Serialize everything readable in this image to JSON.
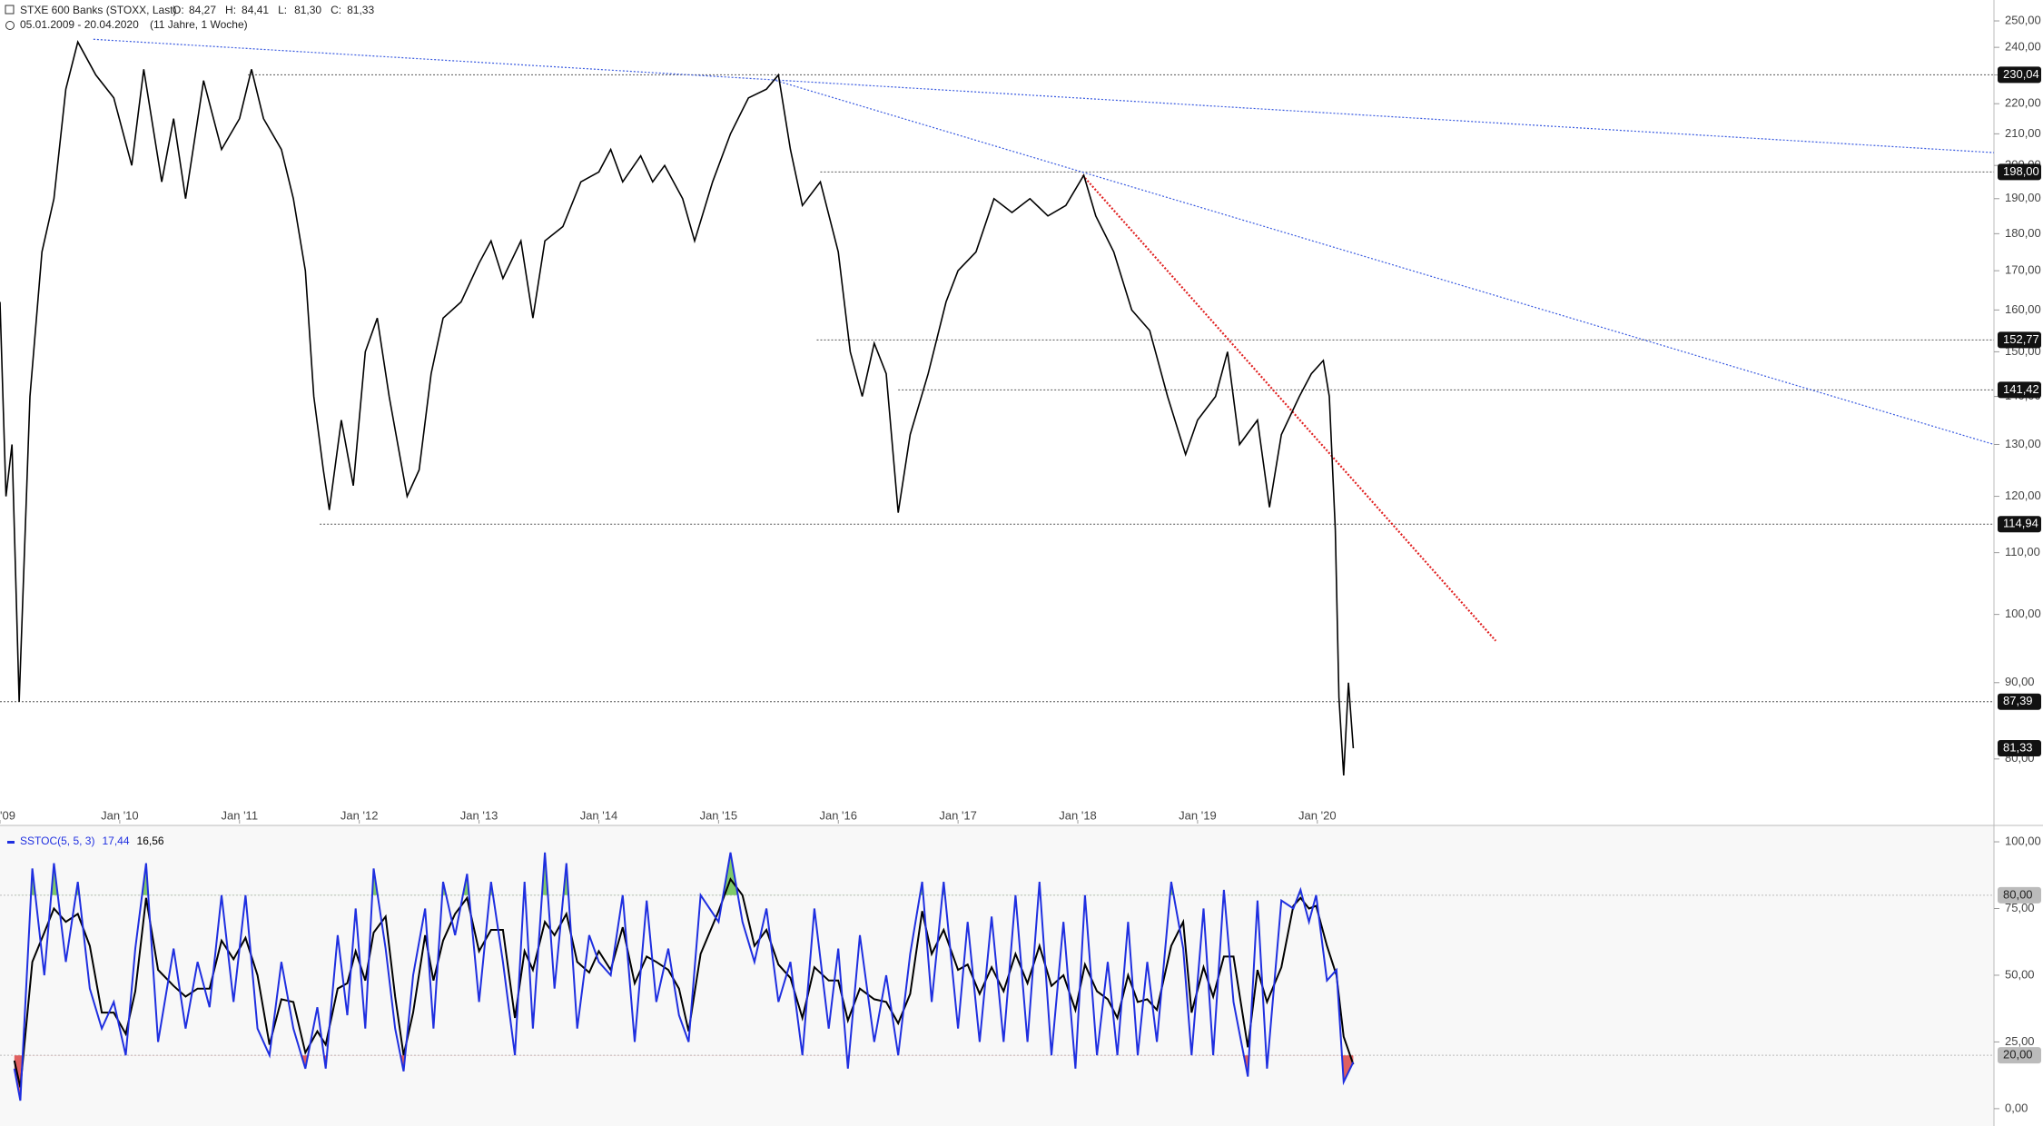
{
  "header": {
    "title": "STXE 600 Banks (STOXX, Last)",
    "ohlc": [
      {
        "label": "O:",
        "value": "84,27"
      },
      {
        "label": "H:",
        "value": "84,41"
      },
      {
        "label": "L:",
        "value": "81,30"
      },
      {
        "label": "C:",
        "value": "81,33"
      }
    ],
    "range": "05.01.2009 - 20.04.2020",
    "period": "(11 Jahre, 1 Woche)"
  },
  "chart_data": [
    {
      "type": "line",
      "log_scale": true,
      "color": "#000000",
      "x": [
        2009.0,
        2009.05,
        2009.1,
        2009.16,
        2009.25,
        2009.35,
        2009.45,
        2009.55,
        2009.65,
        2009.8,
        2009.95,
        2010.1,
        2010.2,
        2010.35,
        2010.45,
        2010.55,
        2010.7,
        2010.85,
        2011.0,
        2011.1,
        2011.2,
        2011.35,
        2011.45,
        2011.55,
        2011.62,
        2011.7,
        2011.75,
        2011.85,
        2011.95,
        2012.05,
        2012.15,
        2012.25,
        2012.4,
        2012.5,
        2012.6,
        2012.7,
        2012.85,
        2013.0,
        2013.1,
        2013.2,
        2013.35,
        2013.45,
        2013.55,
        2013.7,
        2013.85,
        2014.0,
        2014.1,
        2014.2,
        2014.35,
        2014.45,
        2014.55,
        2014.7,
        2014.8,
        2014.95,
        2015.1,
        2015.25,
        2015.4,
        2015.5,
        2015.6,
        2015.7,
        2015.85,
        2016.0,
        2016.1,
        2016.2,
        2016.3,
        2016.4,
        2016.5,
        2016.6,
        2016.75,
        2016.9,
        2017.0,
        2017.15,
        2017.3,
        2017.45,
        2017.6,
        2017.75,
        2017.9,
        2018.05,
        2018.15,
        2018.3,
        2018.45,
        2018.6,
        2018.75,
        2018.9,
        2019.0,
        2019.15,
        2019.25,
        2019.35,
        2019.5,
        2019.6,
        2019.7,
        2019.85,
        2019.95,
        2020.05,
        2020.1,
        2020.15,
        2020.18,
        2020.22,
        2020.26,
        2020.3
      ],
      "values": [
        162,
        120,
        130,
        87.4,
        140,
        175,
        190,
        225,
        242,
        230,
        222,
        200,
        232,
        195,
        215,
        190,
        228,
        205,
        215,
        232,
        215,
        205,
        190,
        170,
        140,
        125,
        117.5,
        135,
        122,
        150,
        158,
        140,
        120,
        125,
        145,
        158,
        162,
        172,
        178,
        168,
        178,
        158,
        178,
        182,
        195,
        198,
        205,
        195,
        203,
        195,
        200,
        190,
        178,
        195,
        210,
        222,
        225,
        230,
        205,
        188,
        195,
        175,
        150,
        140,
        152,
        145,
        117,
        132,
        145,
        162,
        170,
        175,
        190,
        186,
        190,
        185,
        188,
        197,
        185,
        175,
        160,
        155,
        140,
        128,
        135,
        140,
        150,
        130,
        135,
        118,
        132,
        140,
        145,
        148,
        140,
        114,
        88,
        78,
        90,
        81.33
      ],
      "xlim": [
        2009.0,
        2025.65
      ],
      "xticks": [
        {
          "value": 2009,
          "label": "'09"
        },
        {
          "value": 2010,
          "label": "Jan '10"
        },
        {
          "value": 2011,
          "label": "Jan '11"
        },
        {
          "value": 2012,
          "label": "Jan '12"
        },
        {
          "value": 2013,
          "label": "Jan '13"
        },
        {
          "value": 2014,
          "label": "Jan '14"
        },
        {
          "value": 2015,
          "label": "Jan '15"
        },
        {
          "value": 2016,
          "label": "Jan '16"
        },
        {
          "value": 2017,
          "label": "Jan '17"
        },
        {
          "value": 2018,
          "label": "Jan '18"
        },
        {
          "value": 2019,
          "label": "Jan '19"
        },
        {
          "value": 2020,
          "label": "Jan '20"
        }
      ],
      "ylim": [
        72.4,
        258.2
      ],
      "yticks": [
        {
          "value": 80,
          "label": "80,00"
        },
        {
          "value": 90,
          "label": "90,00"
        },
        {
          "value": 100,
          "label": "100,00"
        },
        {
          "value": 110,
          "label": "110,00"
        },
        {
          "value": 120,
          "label": "120,00"
        },
        {
          "value": 130,
          "label": "130,00"
        },
        {
          "value": 140,
          "label": "140,00"
        },
        {
          "value": 150,
          "label": "150,00"
        },
        {
          "value": 160,
          "label": "160,00"
        },
        {
          "value": 170,
          "label": "170,00"
        },
        {
          "value": 180,
          "label": "180,00"
        },
        {
          "value": 190,
          "label": "190,00"
        },
        {
          "value": 200,
          "label": "200,00"
        },
        {
          "value": 210,
          "label": "210,00"
        },
        {
          "value": 220,
          "label": "220,00"
        },
        {
          "value": 230,
          "label": "230,00"
        },
        {
          "value": 240,
          "label": "240,00"
        },
        {
          "value": 250,
          "label": "250,00"
        }
      ],
      "levels": [
        {
          "value": 230.04,
          "label": "230,04",
          "from": 2011.07
        },
        {
          "value": 198.0,
          "label": "198,00",
          "from": 2015.85
        },
        {
          "value": 152.77,
          "label": "152,77",
          "from": 2015.82
        },
        {
          "value": 141.42,
          "label": "141,42",
          "from": 2016.5
        },
        {
          "value": 114.94,
          "label": "114,94",
          "from": 2011.67
        },
        {
          "value": 87.39,
          "label": "87,39",
          "from": 2009.0
        }
      ],
      "last": {
        "value": 81.33,
        "label": "81,33"
      },
      "trendlines": [
        {
          "color": "#3a5be0",
          "x": [
            2009.78,
            2025.65
          ],
          "values": [
            243,
            204
          ]
        },
        {
          "color": "#3a5be0",
          "x": [
            2015.48,
            2025.65
          ],
          "values": [
            228,
            130
          ]
        },
        {
          "color": "#e02020",
          "x": [
            2018.04,
            2021.49
          ],
          "values": [
            197,
            96
          ]
        }
      ]
    },
    {
      "type": "line",
      "legend": "SSTOC(5, 5, 3)",
      "x": [
        2009.12,
        2009.17,
        2009.27,
        2009.37,
        2009.45,
        2009.55,
        2009.65,
        2009.75,
        2009.85,
        2009.95,
        2010.05,
        2010.13,
        2010.22,
        2010.32,
        2010.45,
        2010.55,
        2010.65,
        2010.75,
        2010.85,
        2010.95,
        2011.05,
        2011.15,
        2011.25,
        2011.35,
        2011.45,
        2011.55,
        2011.65,
        2011.72,
        2011.82,
        2011.9,
        2011.97,
        2012.05,
        2012.12,
        2012.22,
        2012.3,
        2012.37,
        2012.45,
        2012.55,
        2012.62,
        2012.7,
        2012.8,
        2012.9,
        2013.0,
        2013.1,
        2013.2,
        2013.3,
        2013.38,
        2013.45,
        2013.55,
        2013.63,
        2013.73,
        2013.82,
        2013.92,
        2014.0,
        2014.1,
        2014.2,
        2014.3,
        2014.4,
        2014.48,
        2014.58,
        2014.67,
        2014.75,
        2014.85,
        2015.0,
        2015.1,
        2015.2,
        2015.3,
        2015.4,
        2015.5,
        2015.6,
        2015.7,
        2015.8,
        2015.92,
        2016.0,
        2016.08,
        2016.18,
        2016.3,
        2016.4,
        2016.5,
        2016.6,
        2016.7,
        2016.78,
        2016.88,
        2017.0,
        2017.08,
        2017.18,
        2017.28,
        2017.38,
        2017.48,
        2017.58,
        2017.68,
        2017.78,
        2017.88,
        2017.98,
        2018.06,
        2018.16,
        2018.25,
        2018.33,
        2018.42,
        2018.5,
        2018.58,
        2018.66,
        2018.78,
        2018.88,
        2018.95,
        2019.05,
        2019.13,
        2019.22,
        2019.3,
        2019.42,
        2019.5,
        2019.58,
        2019.7,
        2019.8,
        2019.86,
        2019.93,
        2019.99,
        2020.08,
        2020.16,
        2020.22,
        2020.3
      ],
      "series": [
        {
          "color": "#1f2fe0",
          "last_label": "17,44",
          "values": [
            15,
            3,
            90,
            50,
            92,
            55,
            85,
            45,
            30,
            40,
            20,
            60,
            92,
            25,
            60,
            30,
            55,
            38,
            80,
            40,
            80,
            30,
            20,
            55,
            30,
            15,
            38,
            15,
            65,
            35,
            75,
            30,
            90,
            60,
            30,
            14,
            50,
            75,
            30,
            85,
            65,
            88,
            40,
            85,
            55,
            20,
            85,
            30,
            96,
            45,
            92,
            30,
            65,
            55,
            50,
            80,
            25,
            78,
            40,
            60,
            35,
            25,
            80,
            70,
            96,
            70,
            55,
            75,
            40,
            55,
            20,
            75,
            30,
            60,
            15,
            65,
            25,
            50,
            20,
            58,
            85,
            40,
            85,
            30,
            70,
            25,
            72,
            25,
            80,
            25,
            85,
            20,
            70,
            15,
            80,
            20,
            55,
            20,
            70,
            20,
            55,
            25,
            85,
            60,
            20,
            75,
            20,
            82,
            40,
            12,
            78,
            15,
            78,
            75,
            82,
            70,
            80,
            48,
            52,
            10,
            17.44
          ]
        },
        {
          "color": "#000000",
          "last_label": "16,56",
          "values": [
            18,
            8,
            55,
            66,
            75,
            70,
            73,
            61,
            36,
            36,
            28,
            44,
            79,
            52,
            46,
            42,
            45,
            45,
            63,
            56,
            64,
            50,
            24,
            41,
            40,
            21,
            29,
            24,
            45,
            47,
            59,
            48,
            66,
            72,
            42,
            20,
            36,
            65,
            48,
            63,
            73,
            79,
            59,
            67,
            67,
            34,
            59,
            52,
            70,
            65,
            73,
            55,
            51,
            59,
            52,
            68,
            47,
            57,
            55,
            52,
            45,
            29,
            58,
            74,
            86,
            80,
            61,
            67,
            54,
            49,
            34,
            53,
            48,
            48,
            33,
            45,
            41,
            40,
            32,
            43,
            74,
            58,
            67,
            52,
            54,
            43,
            53,
            44,
            58,
            47,
            61,
            46,
            50,
            37,
            54,
            44,
            41,
            34,
            50,
            40,
            41,
            37,
            61,
            70,
            36,
            53,
            42,
            57,
            57,
            23,
            52,
            40,
            53,
            76,
            79,
            75,
            76,
            61,
            50,
            27,
            16.56
          ]
        }
      ],
      "xlim": [
        2009.0,
        2025.65
      ],
      "ylim": [
        -6.5,
        105.8
      ],
      "yticks": [
        {
          "value": 0,
          "label": "0,00"
        },
        {
          "value": 25,
          "label": "25,00"
        },
        {
          "value": 50,
          "label": "50,00"
        },
        {
          "value": 75,
          "label": "75,00"
        },
        {
          "value": 100,
          "label": "100,00"
        }
      ],
      "levels": [
        {
          "value": 80,
          "label": "80,00",
          "fill": "#7fc96a"
        },
        {
          "value": 20,
          "label": "20,00",
          "fill": "#e06060"
        }
      ]
    }
  ]
}
